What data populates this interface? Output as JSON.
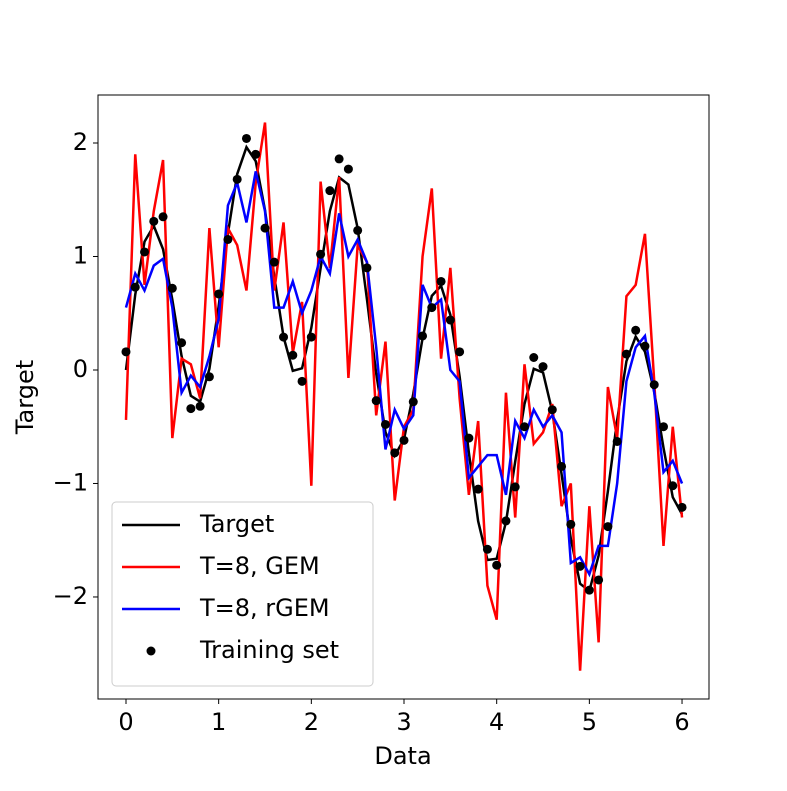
{
  "chart_data": {
    "type": "line",
    "x_label": "Data",
    "y_label": "Target",
    "x": [
      0,
      0.1,
      0.2,
      0.3,
      0.4,
      0.5,
      0.6,
      0.7,
      0.8,
      0.9,
      1.0,
      1.1,
      1.2,
      1.3,
      1.4,
      1.5,
      1.6,
      1.7,
      1.8,
      1.9,
      2.0,
      2.1,
      2.2,
      2.3,
      2.4,
      2.5,
      2.6,
      2.7,
      2.8,
      2.9,
      3.0,
      3.1,
      3.2,
      3.3,
      3.4,
      3.5,
      3.6,
      3.7,
      3.8,
      3.9,
      4.0,
      4.1,
      4.2,
      4.3,
      4.4,
      4.5,
      4.6,
      4.7,
      4.8,
      4.9,
      5.0,
      5.1,
      5.2,
      5.3,
      5.4,
      5.5,
      5.6,
      5.7,
      5.8,
      5.9,
      6.0
    ],
    "series": [
      {
        "name": "Target",
        "color": "#000000",
        "type": "line",
        "values": [
          0,
          0.665,
          1.131,
          1.27,
          1.064,
          0.62,
          0.122,
          -0.228,
          -0.279,
          0.01,
          0.562,
          1.203,
          1.726,
          1.963,
          1.84,
          1.409,
          0.825,
          0.292,
          -0.007,
          0.015,
          0.372,
          0.897,
          1.4,
          1.697,
          1.634,
          1.248,
          0.624,
          -0.032,
          -0.547,
          -0.754,
          -0.61,
          -0.21,
          0.279,
          0.653,
          0.742,
          0.486,
          -0.057,
          -0.73,
          -1.332,
          -1.674,
          -1.663,
          -1.341,
          -0.806,
          -0.3,
          0.01,
          -0.022,
          -0.367,
          -0.917,
          -1.486,
          -1.883,
          -1.947,
          -1.635,
          -1.068,
          -0.442,
          0.078,
          0.294,
          0.161,
          -0.191,
          -0.686,
          -1.121,
          -1.271
        ]
      },
      {
        "name": "T=8, GEM",
        "color": "#ff0000",
        "type": "line",
        "values": [
          -0.44,
          1.9,
          0.75,
          1.4,
          1.85,
          -0.6,
          0.1,
          0.05,
          -0.25,
          1.25,
          0.2,
          1.25,
          1.1,
          0.7,
          1.65,
          2.18,
          0.7,
          1.3,
          0.15,
          0.6,
          -1.02,
          1.66,
          0.9,
          1.7,
          -0.07,
          1.1,
          0.95,
          -0.4,
          0.25,
          -1.15,
          -0.5,
          -0.35,
          1.0,
          1.6,
          0.1,
          0.9,
          -0.25,
          -1.1,
          -0.45,
          -1.9,
          -2.2,
          -0.2,
          -1.3,
          0.05,
          -0.65,
          -0.55,
          -0.3,
          -1.2,
          -1.0,
          -2.65,
          -1.2,
          -2.4,
          -0.15,
          -0.6,
          0.65,
          0.75,
          1.2,
          -0.1,
          -1.55,
          -0.5,
          -1.3
        ]
      },
      {
        "name": "T=8, rGEM",
        "color": "#0000ff",
        "type": "line",
        "values": [
          0.55,
          0.85,
          0.7,
          0.92,
          0.98,
          0.55,
          -0.2,
          -0.05,
          -0.15,
          0.12,
          0.45,
          1.45,
          1.65,
          1.3,
          1.75,
          1.4,
          0.55,
          0.55,
          0.78,
          0.5,
          0.7,
          1.0,
          0.85,
          1.38,
          1.0,
          1.15,
          0.95,
          0.2,
          -0.7,
          -0.35,
          -0.52,
          -0.4,
          0.75,
          0.55,
          0.62,
          0.0,
          -0.1,
          -0.95,
          -0.85,
          -0.75,
          -0.75,
          -1.1,
          -0.45,
          -0.6,
          -0.35,
          -0.5,
          -0.4,
          -0.55,
          -1.7,
          -1.65,
          -1.8,
          -1.55,
          -1.55,
          -1.0,
          -0.1,
          0.2,
          0.3,
          -0.2,
          -0.9,
          -0.8,
          -1.0
        ]
      },
      {
        "name": "Training set",
        "color": "#000000",
        "type": "scatter",
        "values": [
          0.16,
          0.73,
          1.04,
          1.31,
          1.35,
          0.72,
          0.24,
          -0.34,
          -0.32,
          -0.06,
          0.67,
          1.15,
          1.68,
          2.04,
          1.9,
          1.25,
          0.95,
          0.29,
          0.13,
          -0.1,
          0.29,
          1.02,
          1.58,
          1.86,
          1.77,
          1.23,
          0.9,
          -0.27,
          -0.48,
          -0.73,
          -0.62,
          -0.28,
          0.3,
          0.55,
          0.78,
          0.44,
          0.16,
          -0.6,
          -1.05,
          -1.58,
          -1.72,
          -1.33,
          -1.03,
          -0.5,
          0.11,
          0.03,
          -0.35,
          -0.85,
          -1.36,
          -1.73,
          -1.94,
          -1.85,
          -1.38,
          -0.63,
          0.14,
          0.35,
          0.21,
          -0.13,
          -0.5,
          -1.02,
          -1.21
        ]
      }
    ],
    "xlim": [
      -0.302,
      6.291
    ],
    "ylim": [
      -2.899,
      2.423
    ],
    "xticks": [
      0,
      1,
      2,
      3,
      4,
      5,
      6
    ],
    "yticks": [
      {
        "value": -2,
        "label": "−2"
      },
      {
        "value": -1,
        "label": "−1"
      },
      0,
      1,
      2
    ],
    "legend": "lower left"
  }
}
